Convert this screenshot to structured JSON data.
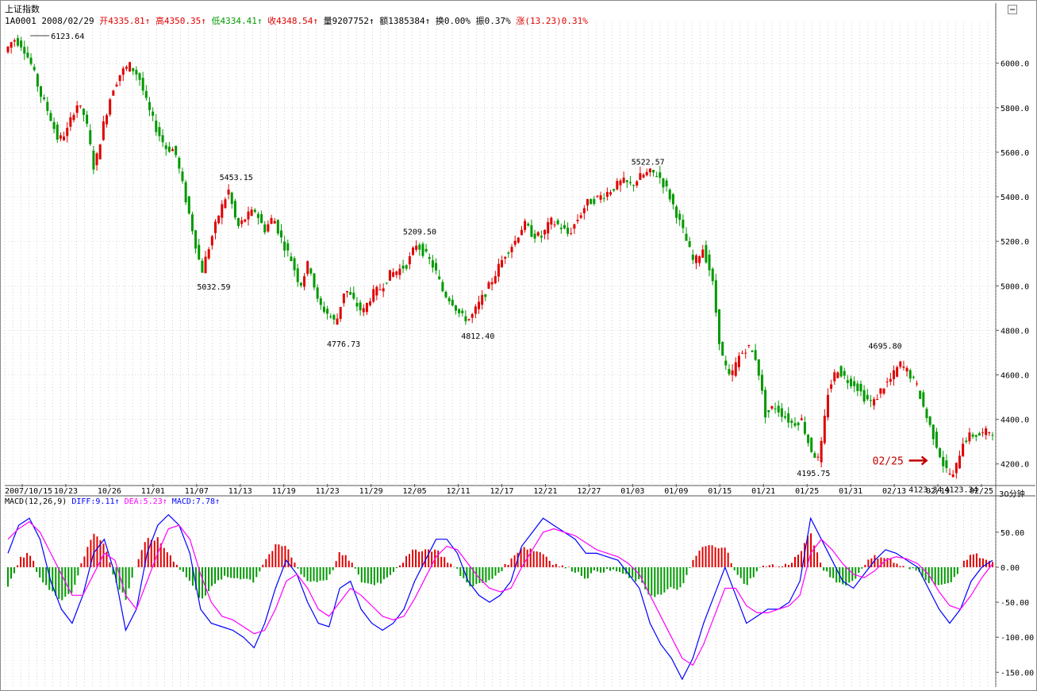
{
  "window": {
    "title": "上证指数"
  },
  "quote": {
    "code": "1A0001",
    "date": "2008/02/29",
    "open_label": "开",
    "open": "4335.81",
    "high_label": "高",
    "high": "4350.35",
    "low_label": "低",
    "low": "4334.41",
    "close_label": "收",
    "close": "4348.54",
    "volume_label": "量",
    "volume": "9207752",
    "amount_label": "额",
    "amount": "1385384",
    "turnover_label": "换",
    "turnover": "0.00%",
    "amplitude_label": "振",
    "amplitude": "0.37%",
    "change_label": "涨",
    "change": "(13.23)0.31%",
    "arrow": "↑"
  },
  "macd_header": {
    "name": "MACD(12,26,9)",
    "diff": "DIFF:9.11",
    "dea": "DEA:5.23",
    "macd": "MACD:7.78",
    "arrow": "↑"
  },
  "period": "30分钟",
  "colors": {
    "up": "#e00000",
    "down": "#009900",
    "diff_line": "#0000ff",
    "dea_line": "#ff00ff",
    "grid": "#b0b0b0",
    "annotation": "#c00000"
  },
  "chart_data": [
    {
      "type": "candlestick",
      "title": "上证指数",
      "y_ticks": [
        "6000.0",
        "5800.0",
        "5600.0",
        "5400.0",
        "5200.0",
        "5000.0",
        "4800.0",
        "4600.0",
        "4400.0",
        "4200.0"
      ],
      "ylim": [
        4110,
        6170
      ],
      "x_labels": [
        "2007/10/15",
        "10/23",
        "10/26",
        "11/01",
        "11/07",
        "11/13",
        "11/19",
        "11/23",
        "11/29",
        "12/05",
        "12/11",
        "12/17",
        "12/21",
        "12/27",
        "01/03",
        "01/09",
        "01/15",
        "01/21",
        "01/25",
        "01/31",
        "02/13",
        "02/19",
        "02/25"
      ],
      "grid": "dotted",
      "price_path": [
        [
          0,
          6050
        ],
        [
          2,
          6110
        ],
        [
          4,
          6080
        ],
        [
          6,
          5990
        ],
        [
          8,
          5860
        ],
        [
          10,
          5770
        ],
        [
          12,
          5650
        ],
        [
          14,
          5700
        ],
        [
          16,
          5820
        ],
        [
          18,
          5760
        ],
        [
          20,
          5520
        ],
        [
          22,
          5720
        ],
        [
          24,
          5880
        ],
        [
          26,
          5960
        ],
        [
          28,
          5990
        ],
        [
          30,
          5940
        ],
        [
          32,
          5800
        ],
        [
          34,
          5700
        ],
        [
          36,
          5620
        ],
        [
          38,
          5610
        ],
        [
          40,
          5430
        ],
        [
          42,
          5250
        ],
        [
          44,
          5060
        ],
        [
          46,
          5200
        ],
        [
          48,
          5330
        ],
        [
          50,
          5430
        ],
        [
          52,
          5260
        ],
        [
          54,
          5310
        ],
        [
          56,
          5340
        ],
        [
          58,
          5250
        ],
        [
          60,
          5310
        ],
        [
          62,
          5200
        ],
        [
          64,
          5120
        ],
        [
          66,
          5000
        ],
        [
          68,
          5110
        ],
        [
          70,
          4920
        ],
        [
          72,
          4880
        ],
        [
          74,
          4830
        ],
        [
          76,
          4990
        ],
        [
          78,
          4930
        ],
        [
          80,
          4880
        ],
        [
          82,
          4960
        ],
        [
          84,
          4990
        ],
        [
          86,
          5050
        ],
        [
          88,
          5070
        ],
        [
          90,
          5100
        ],
        [
          92,
          5190
        ],
        [
          94,
          5140
        ],
        [
          96,
          5080
        ],
        [
          98,
          4970
        ],
        [
          100,
          4930
        ],
        [
          102,
          4860
        ],
        [
          104,
          4850
        ],
        [
          106,
          4920
        ],
        [
          108,
          4990
        ],
        [
          110,
          5070
        ],
        [
          112,
          5150
        ],
        [
          114,
          5200
        ],
        [
          116,
          5280
        ],
        [
          118,
          5230
        ],
        [
          120,
          5220
        ],
        [
          122,
          5290
        ],
        [
          124,
          5270
        ],
        [
          126,
          5230
        ],
        [
          128,
          5300
        ],
        [
          130,
          5370
        ],
        [
          132,
          5390
        ],
        [
          134,
          5410
        ],
        [
          136,
          5440
        ],
        [
          138,
          5470
        ],
        [
          140,
          5450
        ],
        [
          142,
          5490
        ],
        [
          144,
          5510
        ],
        [
          146,
          5500
        ],
        [
          148,
          5430
        ],
        [
          150,
          5330
        ],
        [
          152,
          5220
        ],
        [
          154,
          5100
        ],
        [
          156,
          5170
        ],
        [
          158,
          5040
        ],
        [
          160,
          4700
        ],
        [
          162,
          4580
        ],
        [
          164,
          4680
        ],
        [
          166,
          4730
        ],
        [
          168,
          4670
        ],
        [
          170,
          4420
        ],
        [
          172,
          4460
        ],
        [
          174,
          4420
        ],
        [
          176,
          4380
        ],
        [
          178,
          4400
        ],
        [
          180,
          4270
        ],
        [
          182,
          4210
        ],
        [
          184,
          4530
        ],
        [
          186,
          4630
        ],
        [
          188,
          4580
        ],
        [
          190,
          4560
        ],
        [
          192,
          4500
        ],
        [
          194,
          4470
        ],
        [
          196,
          4540
        ],
        [
          198,
          4580
        ],
        [
          200,
          4650
        ],
        [
          202,
          4610
        ],
        [
          204,
          4540
        ],
        [
          206,
          4410
        ],
        [
          208,
          4300
        ],
        [
          210,
          4180
        ],
        [
          212,
          4140
        ],
        [
          214,
          4300
        ],
        [
          216,
          4330
        ],
        [
          218,
          4330
        ],
        [
          220,
          4348
        ]
      ],
      "x_count": 220,
      "annotations": [
        {
          "label": "6123.64",
          "x": 5,
          "y": 6123.64,
          "dir": "left"
        },
        {
          "label": "5453.15",
          "x": 51,
          "y": 5453.15,
          "dir": "up"
        },
        {
          "label": "5032.59",
          "x": 46,
          "y": 5032.59,
          "dir": "down"
        },
        {
          "label": "4776.73",
          "x": 75,
          "y": 4776.73,
          "dir": "down"
        },
        {
          "label": "5209.50",
          "x": 92,
          "y": 5209.5,
          "dir": "up"
        },
        {
          "label": "4812.40",
          "x": 105,
          "y": 4812.4,
          "dir": "down"
        },
        {
          "label": "5522.57",
          "x": 143,
          "y": 5522.57,
          "dir": "up"
        },
        {
          "label": "4195.75",
          "x": 180,
          "y": 4195.75,
          "dir": "down"
        },
        {
          "label": "4695.80",
          "x": 196,
          "y": 4695.8,
          "dir": "up"
        },
        {
          "label": "4123.34",
          "x": 205,
          "y": 4123.34,
          "dir": "down"
        },
        {
          "label": "4123.34",
          "x": 213,
          "y": 4123.34,
          "dir": "down"
        }
      ],
      "marker": {
        "label": "02/25",
        "x": 207,
        "y": 4215
      }
    },
    {
      "type": "macd",
      "title": "MACD(12,26,9)",
      "y_ticks": [
        "50.00",
        "0.00",
        "-50.00",
        "-100.00",
        "-150.00"
      ],
      "ylim": [
        -170,
        85
      ],
      "series": [
        {
          "name": "DIFF",
          "color": "#0000ff",
          "values": [
            20,
            60,
            70,
            40,
            -20,
            -60,
            -80,
            -40,
            20,
            40,
            -10,
            -90,
            -60,
            20,
            60,
            75,
            60,
            20,
            -60,
            -80,
            -85,
            -90,
            -100,
            -115,
            -80,
            -30,
            10,
            -10,
            -50,
            -80,
            -85,
            -30,
            -20,
            -60,
            -80,
            -90,
            -80,
            -60,
            -20,
            10,
            40,
            40,
            20,
            -20,
            -40,
            -50,
            -40,
            -20,
            30,
            50,
            70,
            60,
            50,
            40,
            20,
            20,
            15,
            10,
            -10,
            -30,
            -80,
            -110,
            -130,
            -160,
            -130,
            -80,
            -40,
            0,
            -40,
            -80,
            -70,
            -60,
            -60,
            -50,
            -20,
            70,
            40,
            10,
            -20,
            -30,
            -10,
            10,
            25,
            20,
            10,
            0,
            -30,
            -60,
            -80,
            -60,
            -20,
            0,
            10
          ]
        },
        {
          "name": "DEA",
          "color": "#ff00ff",
          "values": [
            40,
            55,
            65,
            50,
            20,
            -10,
            -40,
            -40,
            -10,
            20,
            10,
            -40,
            -60,
            -20,
            20,
            55,
            60,
            40,
            -10,
            -50,
            -70,
            -75,
            -85,
            -95,
            -90,
            -60,
            -20,
            -10,
            -30,
            -60,
            -70,
            -50,
            -30,
            -40,
            -55,
            -70,
            -75,
            -70,
            -45,
            -15,
            15,
            30,
            25,
            5,
            -15,
            -30,
            -35,
            -30,
            0,
            25,
            50,
            55,
            50,
            45,
            35,
            25,
            20,
            15,
            5,
            -10,
            -40,
            -70,
            -100,
            -130,
            -140,
            -110,
            -70,
            -30,
            -30,
            -55,
            -65,
            -65,
            -60,
            -55,
            -40,
            20,
            40,
            25,
            5,
            -10,
            -15,
            -5,
            10,
            15,
            12,
            5,
            -10,
            -35,
            -55,
            -60,
            -40,
            -15,
            5
          ]
        }
      ],
      "histogram": [
        -30,
        10,
        20,
        -15,
        -35,
        -45,
        -35,
        10,
        50,
        35,
        -20,
        -45,
        5,
        40,
        40,
        20,
        0,
        -20,
        -45,
        -30,
        -15,
        -15,
        -15,
        -20,
        10,
        30,
        30,
        0,
        -20,
        -20,
        -15,
        20,
        10,
        -20,
        -25,
        -20,
        -5,
        10,
        25,
        25,
        25,
        10,
        -5,
        -25,
        -25,
        -20,
        -5,
        10,
        30,
        25,
        20,
        5,
        0,
        -5,
        -15,
        -5,
        -5,
        -5,
        -15,
        -20,
        -40,
        -40,
        -30,
        -30,
        10,
        30,
        30,
        30,
        -10,
        -25,
        -5,
        5,
        0,
        5,
        20,
        50,
        0,
        -15,
        -25,
        -20,
        5,
        15,
        15,
        5,
        -2,
        -5,
        -20,
        -25,
        -25,
        0,
        20,
        15,
        5
      ]
    }
  ]
}
